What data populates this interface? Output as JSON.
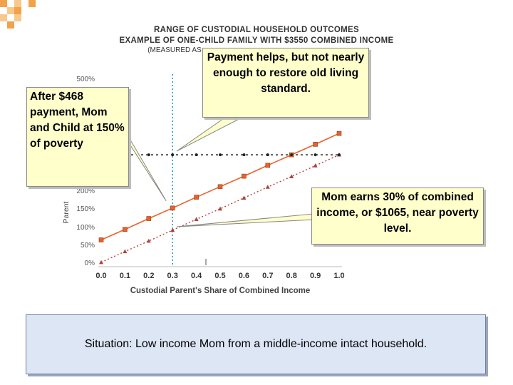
{
  "header": {
    "title_line1": "RANGE OF CUSTODIAL HOUSEHOLD OUTCOMES",
    "title_line2": "EXAMPLE OF ONE-CHILD FAMILY WITH $3550 COMBINED INCOME",
    "title_line3": "(MEASURED AS"
  },
  "callouts": {
    "left": "After $468 payment, Mom and Child at 150% of poverty",
    "top": "Payment helps, but not nearly enough to restore old living standard.",
    "right": "Mom earns 30% of combined income, or $1065, near poverty level."
  },
  "bottom_note": "Situation: Low income Mom from a middle-income intact household.",
  "colors": {
    "with_payment": "#e8632a",
    "without_payment": "#b0413a",
    "reference_line": "#222222",
    "marker_vline": "#2aa0c8",
    "callout_bg": "#ffffcc",
    "note_bg": "#dde6f5"
  },
  "chart_data": {
    "type": "line",
    "xlabel": "Custodial Parent's Share of Combined Income",
    "ylabel": "Parent",
    "x_ticks": [
      "0.0",
      "0.1",
      "0.2",
      "0.3",
      "0.4",
      "0.5",
      "0.6",
      "0.7",
      "0.8",
      "0.9",
      "1.0"
    ],
    "y_ticks": [
      "0%",
      "50%",
      "100%",
      "150%",
      "200%",
      "500%"
    ],
    "x": [
      0.0,
      0.1,
      0.2,
      0.3,
      0.4,
      0.5,
      0.6,
      0.7,
      0.8,
      0.9,
      1.0
    ],
    "xlim": [
      0,
      1
    ],
    "ylim": [
      0,
      500
    ],
    "series": [
      {
        "values": [
          62,
          91,
          121,
          150,
          180,
          209,
          238,
          268,
          297,
          326,
          356
        ],
        "style": "solid",
        "marker": "square"
      },
      {
        "values": [
          0,
          30,
          59,
          89,
          119,
          148,
          178,
          208,
          237,
          267,
          297
        ],
        "style": "dotted",
        "marker": "triangle"
      },
      {
        "values": [
          297,
          297,
          297,
          297,
          297,
          297,
          297,
          297,
          297,
          297,
          297
        ],
        "style": "dotted",
        "marker": "dot"
      }
    ],
    "vline_x": 0.3,
    "grid": false,
    "legend": "none"
  }
}
